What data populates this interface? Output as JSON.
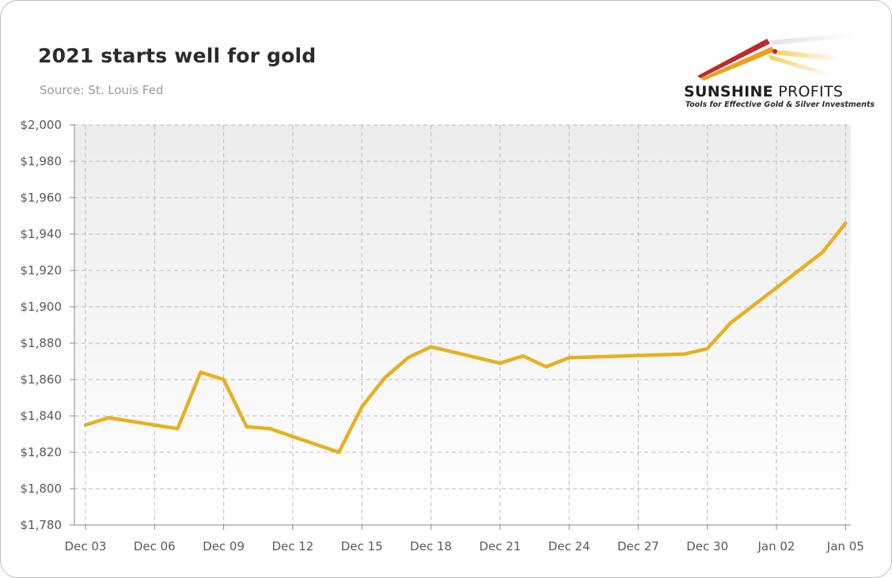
{
  "header": {
    "title": "2021 starts well for gold",
    "source": "Source: St. Louis Fed"
  },
  "logo": {
    "brand_bold": "SUNSHINE",
    "brand_light": " PROFITS",
    "tagline": "Tools for Effective Gold & Silver Investments",
    "colors": [
      "#c0282c",
      "#e8a21c",
      "#f2c94c"
    ]
  },
  "chart_data": {
    "type": "line",
    "title": "2021 starts well for gold",
    "subtitle": "Source: St. Louis Fed",
    "xlabel": "",
    "ylabel": "",
    "ylim": [
      1780,
      2000
    ],
    "yticks": [
      1780,
      1800,
      1820,
      1840,
      1860,
      1880,
      1900,
      1920,
      1940,
      1960,
      1980,
      2000
    ],
    "ytick_labels": [
      "$1,780",
      "$1,800",
      "$1,820",
      "$1,840",
      "$1,860",
      "$1,880",
      "$1,900",
      "$1,920",
      "$1,940",
      "$1,960",
      "$1,980",
      "$2,000"
    ],
    "xtick_labels": [
      "Dec 03",
      "Dec 06",
      "Dec 09",
      "Dec 12",
      "Dec 15",
      "Dec 18",
      "Dec 21",
      "Dec 24",
      "Dec 27",
      "Dec 30",
      "Jan 02",
      "Jan 05"
    ],
    "grid": true,
    "line_color": "#e8b020",
    "series": [
      {
        "dates": [
          "Dec 03",
          "Dec 04",
          "Dec 07",
          "Dec 08",
          "Dec 09",
          "Dec 10",
          "Dec 11",
          "Dec 14",
          "Dec 15",
          "Dec 16",
          "Dec 17",
          "Dec 18",
          "Dec 21",
          "Dec 22",
          "Dec 23",
          "Dec 24",
          "Dec 29",
          "Dec 30",
          "Dec 31",
          "Jan 04",
          "Jan 05"
        ],
        "x": [
          0,
          1,
          4,
          5,
          6,
          7,
          8,
          11,
          12,
          13,
          14,
          15,
          18,
          19,
          20,
          21,
          26,
          27,
          28,
          32,
          33
        ],
        "values": [
          1835,
          1839,
          1833,
          1864,
          1860,
          1834,
          1833,
          1820,
          1845,
          1861,
          1872,
          1878,
          1869,
          1873,
          1867,
          1872,
          1874,
          1877,
          1891,
          1930,
          1946
        ]
      }
    ]
  }
}
